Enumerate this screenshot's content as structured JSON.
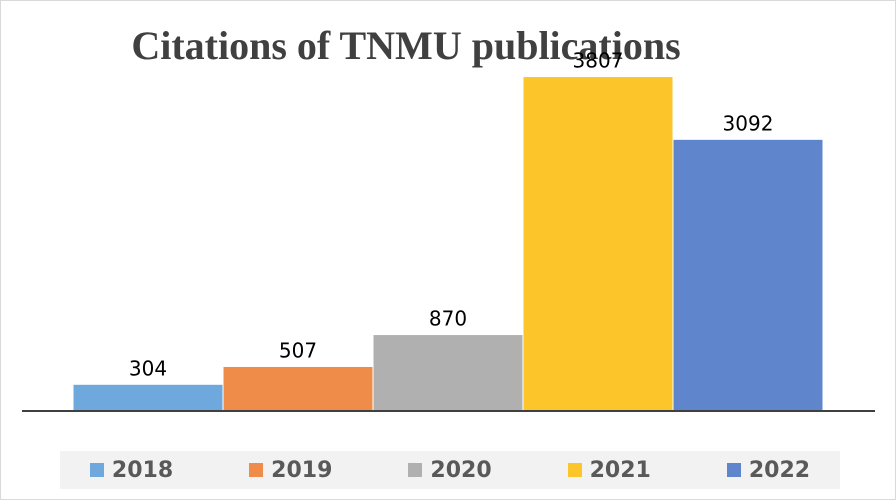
{
  "chart_data": {
    "type": "bar",
    "title": "Citations of TNMU publications",
    "xlabel": "",
    "ylabel": "",
    "ylim": [
      0,
      4200
    ],
    "grid": false,
    "legend_position": "bottom",
    "data_labels": true,
    "categories": [
      "2018",
      "2019",
      "2020",
      "2021",
      "2022"
    ],
    "values": [
      304,
      507,
      870,
      3807,
      3092
    ],
    "colors": [
      "#6fa8dc",
      "#ef8c4a",
      "#b0b0b0",
      "#fcc62a",
      "#5f86cc"
    ]
  }
}
